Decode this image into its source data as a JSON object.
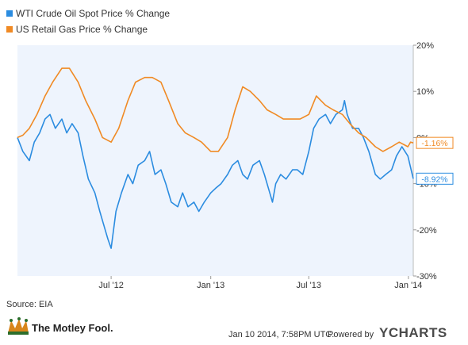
{
  "chart_data": {
    "type": "line",
    "series": [
      {
        "name": "WTI Crude Oil Spot Price % Change",
        "color": "#2b8ce0",
        "end_label": "-8.92%",
        "points": [
          [
            "2012-01-10",
            0
          ],
          [
            "2012-01-20",
            -3
          ],
          [
            "2012-02-01",
            -5
          ],
          [
            "2012-02-10",
            -1
          ],
          [
            "2012-02-20",
            1
          ],
          [
            "2012-03-01",
            4
          ],
          [
            "2012-03-10",
            5
          ],
          [
            "2012-03-20",
            2
          ],
          [
            "2012-04-01",
            4
          ],
          [
            "2012-04-10",
            1
          ],
          [
            "2012-04-20",
            3
          ],
          [
            "2012-05-01",
            1
          ],
          [
            "2012-05-10",
            -4
          ],
          [
            "2012-05-20",
            -9
          ],
          [
            "2012-06-01",
            -12
          ],
          [
            "2012-06-10",
            -16
          ],
          [
            "2012-06-20",
            -20
          ],
          [
            "2012-06-25",
            -22
          ],
          [
            "2012-07-01",
            -24
          ],
          [
            "2012-07-10",
            -16
          ],
          [
            "2012-07-20",
            -12
          ],
          [
            "2012-08-01",
            -8
          ],
          [
            "2012-08-10",
            -10
          ],
          [
            "2012-08-20",
            -6
          ],
          [
            "2012-09-01",
            -5
          ],
          [
            "2012-09-10",
            -3
          ],
          [
            "2012-09-20",
            -8
          ],
          [
            "2012-10-01",
            -7
          ],
          [
            "2012-10-10",
            -10
          ],
          [
            "2012-10-20",
            -14
          ],
          [
            "2012-11-01",
            -15
          ],
          [
            "2012-11-10",
            -12
          ],
          [
            "2012-11-20",
            -15
          ],
          [
            "2012-12-01",
            -14
          ],
          [
            "2012-12-10",
            -16
          ],
          [
            "2012-12-20",
            -14
          ],
          [
            "2013-01-01",
            -12
          ],
          [
            "2013-01-10",
            -11
          ],
          [
            "2013-01-20",
            -10
          ],
          [
            "2013-02-01",
            -8
          ],
          [
            "2013-02-10",
            -6
          ],
          [
            "2013-02-20",
            -5
          ],
          [
            "2013-03-01",
            -8
          ],
          [
            "2013-03-10",
            -9
          ],
          [
            "2013-03-20",
            -6
          ],
          [
            "2013-04-01",
            -5
          ],
          [
            "2013-04-10",
            -8
          ],
          [
            "2013-04-20",
            -12
          ],
          [
            "2013-04-25",
            -14
          ],
          [
            "2013-05-01",
            -10
          ],
          [
            "2013-05-10",
            -8
          ],
          [
            "2013-05-20",
            -9
          ],
          [
            "2013-06-01",
            -7
          ],
          [
            "2013-06-10",
            -7
          ],
          [
            "2013-06-20",
            -8
          ],
          [
            "2013-07-01",
            -3
          ],
          [
            "2013-07-10",
            2
          ],
          [
            "2013-07-20",
            4
          ],
          [
            "2013-08-01",
            5
          ],
          [
            "2013-08-10",
            3
          ],
          [
            "2013-08-20",
            5
          ],
          [
            "2013-09-01",
            6
          ],
          [
            "2013-09-05",
            8
          ],
          [
            "2013-09-10",
            5
          ],
          [
            "2013-09-20",
            2
          ],
          [
            "2013-10-01",
            2
          ],
          [
            "2013-10-10",
            0
          ],
          [
            "2013-10-20",
            -3
          ],
          [
            "2013-11-01",
            -8
          ],
          [
            "2013-11-10",
            -9
          ],
          [
            "2013-11-20",
            -8
          ],
          [
            "2013-12-01",
            -7
          ],
          [
            "2013-12-10",
            -4
          ],
          [
            "2013-12-20",
            -2
          ],
          [
            "2013-12-31",
            -4
          ],
          [
            "2014-01-06",
            -7
          ],
          [
            "2014-01-10",
            -8.92
          ]
        ]
      },
      {
        "name": "US Retail Gas Price % Change",
        "color": "#f08a24",
        "end_label": "-1.16%",
        "points": [
          [
            "2012-01-10",
            0
          ],
          [
            "2012-01-20",
            0.5
          ],
          [
            "2012-02-01",
            2
          ],
          [
            "2012-02-15",
            5
          ],
          [
            "2012-03-01",
            9
          ],
          [
            "2012-03-15",
            12
          ],
          [
            "2012-04-01",
            15
          ],
          [
            "2012-04-15",
            15
          ],
          [
            "2012-05-01",
            12
          ],
          [
            "2012-05-15",
            8
          ],
          [
            "2012-06-01",
            4
          ],
          [
            "2012-06-15",
            0
          ],
          [
            "2012-07-01",
            -1
          ],
          [
            "2012-07-15",
            2
          ],
          [
            "2012-08-01",
            8
          ],
          [
            "2012-08-15",
            12
          ],
          [
            "2012-09-01",
            13
          ],
          [
            "2012-09-15",
            13
          ],
          [
            "2012-10-01",
            12
          ],
          [
            "2012-10-15",
            8
          ],
          [
            "2012-11-01",
            3
          ],
          [
            "2012-11-15",
            1
          ],
          [
            "2012-12-01",
            0
          ],
          [
            "2012-12-15",
            -1
          ],
          [
            "2013-01-01",
            -3
          ],
          [
            "2013-01-15",
            -3
          ],
          [
            "2013-02-01",
            0
          ],
          [
            "2013-02-15",
            6
          ],
          [
            "2013-03-01",
            11
          ],
          [
            "2013-03-15",
            10
          ],
          [
            "2013-04-01",
            8
          ],
          [
            "2013-04-15",
            6
          ],
          [
            "2013-05-01",
            5
          ],
          [
            "2013-05-15",
            4
          ],
          [
            "2013-06-01",
            4
          ],
          [
            "2013-06-15",
            4
          ],
          [
            "2013-07-01",
            5
          ],
          [
            "2013-07-15",
            9
          ],
          [
            "2013-08-01",
            7
          ],
          [
            "2013-08-15",
            6
          ],
          [
            "2013-09-01",
            5
          ],
          [
            "2013-09-15",
            3
          ],
          [
            "2013-10-01",
            1
          ],
          [
            "2013-10-15",
            0
          ],
          [
            "2013-11-01",
            -2
          ],
          [
            "2013-11-15",
            -3
          ],
          [
            "2013-12-01",
            -2
          ],
          [
            "2013-12-15",
            -1
          ],
          [
            "2013-12-31",
            -2
          ],
          [
            "2014-01-05",
            -1
          ],
          [
            "2014-01-10",
            -1.16
          ]
        ]
      }
    ],
    "x_range": [
      "2012-01-10",
      "2014-01-10"
    ],
    "x_ticks": [
      {
        "date": "2012-07-01",
        "label": "Jul '12"
      },
      {
        "date": "2013-01-01",
        "label": "Jan '13"
      },
      {
        "date": "2013-07-01",
        "label": "Jul '13"
      },
      {
        "date": "2014-01-01",
        "label": "Jan '14"
      }
    ],
    "ylim": [
      -30,
      20
    ],
    "y_ticks": [
      {
        "value": 20,
        "label": "20%"
      },
      {
        "value": 10,
        "label": "10%"
      },
      {
        "value": 0,
        "label": "0%"
      },
      {
        "value": -10,
        "label": "-10%"
      },
      {
        "value": -20,
        "label": "-20%"
      },
      {
        "value": -30,
        "label": "-30%"
      }
    ],
    "y_axis_side": "right",
    "grid": false,
    "legend_position": "top-left",
    "plot_background": "#eef4fd"
  },
  "source_label": "Source: EIA",
  "logo_text": "The Motley Fool.",
  "timestamp": "Jan 10 2014, 7:58PM UTC.",
  "powered_by": "Powered by",
  "brand": "YCHARTS"
}
